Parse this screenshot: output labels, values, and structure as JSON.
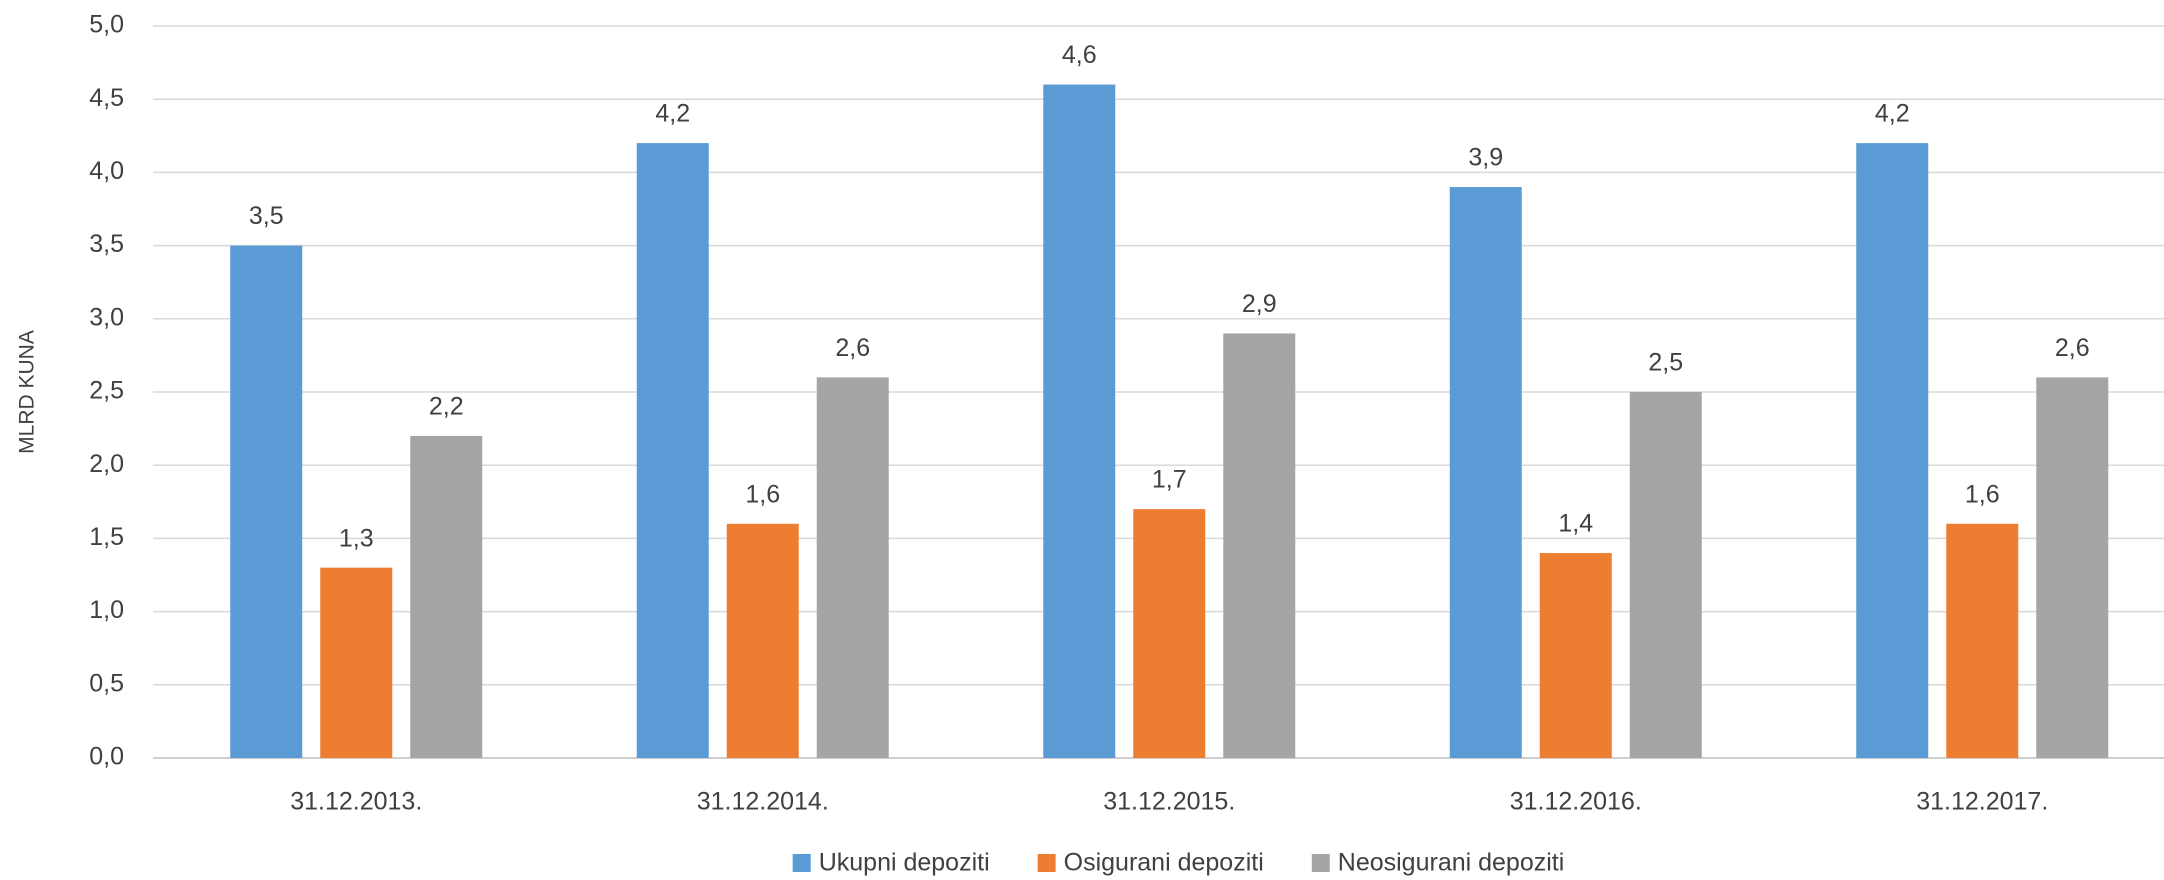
{
  "chart_data": {
    "type": "bar",
    "y_label": "MLRD KUNA",
    "categories": [
      "31.12.2013.",
      "31.12.2014.",
      "31.12.2015.",
      "31.12.2016.",
      "31.12.2017."
    ],
    "series": [
      {
        "name": "Ukupni depoziti",
        "color": "#5b9bd5",
        "values": [
          3.5,
          4.2,
          4.6,
          3.9,
          4.2
        ],
        "value_labels": [
          "3,5",
          "4,2",
          "4,6",
          "3,9",
          "4,2"
        ]
      },
      {
        "name": "Osigurani depoziti",
        "color": "#ed7d31",
        "values": [
          1.3,
          1.6,
          1.7,
          1.4,
          1.6
        ],
        "value_labels": [
          "1,3",
          "1,6",
          "1,7",
          "1,4",
          "1,6"
        ]
      },
      {
        "name": "Neosigurani depoziti",
        "color": "#a5a5a5",
        "values": [
          2.2,
          2.6,
          2.9,
          2.5,
          2.6
        ],
        "value_labels": [
          "2,2",
          "2,6",
          "2,9",
          "2,5",
          "2,6"
        ]
      }
    ],
    "ylim": [
      0,
      5
    ],
    "yticks": [
      {
        "value": 0,
        "label": "0,0"
      },
      {
        "value": 0.5,
        "label": "0,5"
      },
      {
        "value": 1,
        "label": "1,0"
      },
      {
        "value": 1.5,
        "label": "1,5"
      },
      {
        "value": 2,
        "label": "2,0"
      },
      {
        "value": 2.5,
        "label": "2,5"
      },
      {
        "value": 3,
        "label": "3,0"
      },
      {
        "value": 3.5,
        "label": "3,5"
      },
      {
        "value": 4,
        "label": "4,0"
      },
      {
        "value": 4.5,
        "label": "4,5"
      },
      {
        "value": 5,
        "label": "5,0"
      }
    ],
    "grid": true,
    "legend": "bottom"
  }
}
